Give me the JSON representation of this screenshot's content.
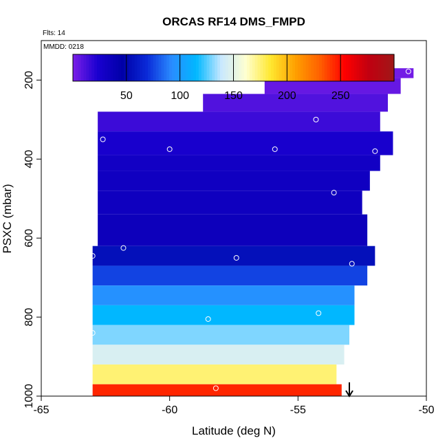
{
  "chart_data": {
    "type": "heatmap",
    "title": "ORCAS RF14 DMS_FMPD",
    "flights_label": "Flts: 14",
    "date_label": "MMDD: 0218",
    "xlabel": "Latitude (deg N)",
    "ylabel": "PSXC (mbar)",
    "xlim": [
      -65,
      -50
    ],
    "ylim": [
      1000,
      100
    ],
    "x_ticks": [
      -65,
      -60,
      -55,
      -50
    ],
    "y_ticks": [
      200,
      400,
      600,
      800,
      1000
    ],
    "colorbar": {
      "range": [
        0,
        300
      ],
      "ticks": [
        50,
        100,
        150,
        200,
        250
      ],
      "colors": [
        "#7b1fe8",
        "#1a00d0",
        "#0000a8",
        "#0a2ad8",
        "#2a8cff",
        "#00b8ff",
        "#c8e8ff",
        "#ffffd0",
        "#ffe830",
        "#ffa000",
        "#ff6000",
        "#ff0000",
        "#c00010",
        "#a01818"
      ]
    },
    "cells": [
      {
        "lat0": -53.2,
        "lat1": -50.5,
        "p0": 170,
        "p1": 195,
        "value": 2
      },
      {
        "lat0": -56.3,
        "lat1": -51.0,
        "p0": 195,
        "p1": 235,
        "value": 5
      },
      {
        "lat0": -58.7,
        "lat1": -51.5,
        "p0": 235,
        "p1": 280,
        "value": 10
      },
      {
        "lat0": -62.8,
        "lat1": -51.8,
        "p0": 280,
        "p1": 330,
        "value": 15
      },
      {
        "lat0": -62.8,
        "lat1": -51.3,
        "p0": 330,
        "p1": 390,
        "value": 25
      },
      {
        "lat0": -62.8,
        "lat1": -51.8,
        "p0": 390,
        "p1": 430,
        "value": 30
      },
      {
        "lat0": -62.8,
        "lat1": -52.2,
        "p0": 430,
        "p1": 480,
        "value": 32
      },
      {
        "lat0": -62.8,
        "lat1": -52.5,
        "p0": 480,
        "p1": 540,
        "value": 33
      },
      {
        "lat0": -62.8,
        "lat1": -52.3,
        "p0": 540,
        "p1": 620,
        "value": 35
      },
      {
        "lat0": -63.0,
        "lat1": -52.0,
        "p0": 620,
        "p1": 670,
        "value": 55
      },
      {
        "lat0": -63.0,
        "lat1": -52.3,
        "p0": 670,
        "p1": 720,
        "value": 75
      },
      {
        "lat0": -63.0,
        "lat1": -52.8,
        "p0": 720,
        "p1": 770,
        "value": 95
      },
      {
        "lat0": -63.0,
        "lat1": -52.8,
        "p0": 770,
        "p1": 820,
        "value": 115
      },
      {
        "lat0": -63.0,
        "lat1": -53.0,
        "p0": 820,
        "p1": 870,
        "value": 130
      },
      {
        "lat0": -63.0,
        "lat1": -53.2,
        "p0": 870,
        "p1": 920,
        "value": 145
      },
      {
        "lat0": -63.0,
        "lat1": -53.5,
        "p0": 920,
        "p1": 970,
        "value": 175
      },
      {
        "lat0": -63.0,
        "lat1": -53.3,
        "p0": 970,
        "p1": 1000,
        "value": 245
      }
    ],
    "flight_points": [
      {
        "lat": -55.7,
        "p": 178
      },
      {
        "lat": -51.9,
        "p": 180
      },
      {
        "lat": -50.7,
        "p": 178
      },
      {
        "lat": -54.3,
        "p": 300
      },
      {
        "lat": -62.6,
        "p": 350
      },
      {
        "lat": -60.0,
        "p": 375
      },
      {
        "lat": -55.9,
        "p": 375
      },
      {
        "lat": -52.0,
        "p": 380
      },
      {
        "lat": -53.6,
        "p": 485
      },
      {
        "lat": -63.0,
        "p": 645
      },
      {
        "lat": -61.8,
        "p": 625
      },
      {
        "lat": -57.4,
        "p": 650
      },
      {
        "lat": -52.9,
        "p": 665
      },
      {
        "lat": -54.2,
        "p": 790
      },
      {
        "lat": -58.5,
        "p": 805
      },
      {
        "lat": -63.0,
        "p": 840
      },
      {
        "lat": -58.2,
        "p": 980
      }
    ],
    "arrow_lat": -53.0
  }
}
